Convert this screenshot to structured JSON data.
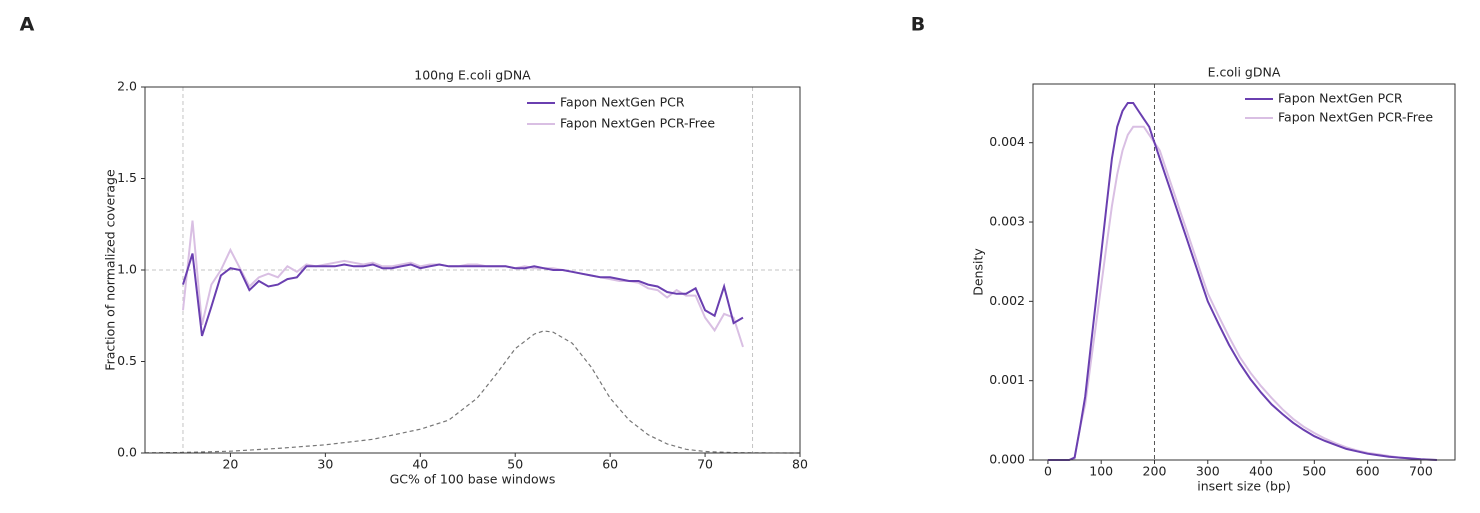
{
  "chart_data": [
    {
      "type": "line",
      "panel_label": "A",
      "title": "100ng E.coli gDNA",
      "x_label": "GC% of 100 base windows",
      "y_label": "Fraction of normalized coverage",
      "x": [
        15,
        16,
        17,
        18,
        19,
        20,
        21,
        22,
        23,
        24,
        25,
        26,
        27,
        28,
        29,
        30,
        31,
        32,
        33,
        34,
        35,
        36,
        37,
        38,
        39,
        40,
        41,
        42,
        43,
        44,
        45,
        46,
        47,
        48,
        49,
        50,
        51,
        52,
        53,
        54,
        55,
        56,
        57,
        58,
        59,
        60,
        61,
        62,
        63,
        64,
        65,
        66,
        67,
        68,
        69,
        70,
        71,
        72,
        73,
        74
      ],
      "series": [
        {
          "name": "Fapon NextGen PCR",
          "color": "#6a3fb0",
          "values": [
            0.92,
            1.09,
            0.64,
            0.8,
            0.97,
            1.01,
            1.0,
            0.89,
            0.94,
            0.91,
            0.92,
            0.95,
            0.96,
            1.02,
            1.02,
            1.02,
            1.02,
            1.03,
            1.02,
            1.02,
            1.03,
            1.01,
            1.01,
            1.02,
            1.03,
            1.01,
            1.02,
            1.03,
            1.02,
            1.02,
            1.02,
            1.02,
            1.02,
            1.02,
            1.02,
            1.01,
            1.01,
            1.02,
            1.01,
            1.0,
            1.0,
            0.99,
            0.98,
            0.97,
            0.96,
            0.96,
            0.95,
            0.94,
            0.94,
            0.92,
            0.91,
            0.88,
            0.87,
            0.87,
            0.9,
            0.78,
            0.75,
            0.91,
            0.71,
            0.74
          ]
        },
        {
          "name": "Fapon NextGen PCR-Free",
          "color": "#d9bfe3",
          "values": [
            0.78,
            1.27,
            0.7,
            0.92,
            1.0,
            1.11,
            1.01,
            0.91,
            0.96,
            0.98,
            0.96,
            1.02,
            0.99,
            1.03,
            1.02,
            1.03,
            1.04,
            1.05,
            1.04,
            1.03,
            1.04,
            1.02,
            1.02,
            1.03,
            1.04,
            1.02,
            1.03,
            1.03,
            1.02,
            1.02,
            1.03,
            1.03,
            1.02,
            1.02,
            1.02,
            1.01,
            1.02,
            1.01,
            1.01,
            1.01,
            1.0,
            0.99,
            0.98,
            0.97,
            0.96,
            0.95,
            0.94,
            0.94,
            0.93,
            0.9,
            0.89,
            0.85,
            0.89,
            0.86,
            0.86,
            0.74,
            0.67,
            0.76,
            0.74,
            0.58
          ]
        }
      ],
      "reference_curve": {
        "color": "#777777",
        "x": [
          11,
          15,
          20,
          25,
          30,
          35,
          40,
          43,
          46,
          48,
          50,
          52,
          53,
          54,
          56,
          58,
          60,
          62,
          64,
          66,
          68,
          70,
          73,
          76,
          80
        ],
        "values": [
          0.001,
          0.003,
          0.01,
          0.025,
          0.045,
          0.075,
          0.13,
          0.18,
          0.3,
          0.43,
          0.57,
          0.65,
          0.667,
          0.66,
          0.6,
          0.47,
          0.3,
          0.18,
          0.1,
          0.05,
          0.02,
          0.008,
          0.002,
          0.0005,
          0
        ]
      },
      "vlines": [
        15,
        75
      ],
      "hlines": [
        1
      ],
      "ref_color": "#c4c4c4",
      "xlim": [
        11,
        80
      ],
      "ylim": [
        0,
        2
      ],
      "xticks": [
        20,
        30,
        40,
        50,
        60,
        70,
        80
      ],
      "yticks": [
        {
          "value": 0,
          "label": "0.0"
        },
        0.5,
        {
          "value": 1,
          "label": "1.0"
        },
        1.5,
        {
          "value": 2,
          "label": "2.0"
        }
      ]
    },
    {
      "type": "line",
      "panel_label": "B",
      "title": "E.coli gDNA",
      "x_label": "insert size (bp)",
      "y_label": "Density",
      "x": [
        0,
        10,
        20,
        30,
        40,
        50,
        60,
        70,
        80,
        90,
        100,
        110,
        120,
        130,
        140,
        150,
        160,
        170,
        180,
        190,
        200,
        210,
        220,
        230,
        240,
        250,
        260,
        270,
        280,
        290,
        300,
        320,
        340,
        360,
        380,
        400,
        420,
        440,
        460,
        480,
        500,
        520,
        540,
        560,
        580,
        600,
        620,
        640,
        660,
        680,
        700,
        730
      ],
      "series": [
        {
          "name": "Fapon NextGen PCR",
          "color": "#6a3fb0",
          "values": [
            0,
            0,
            0,
            0,
            0,
            3e-05,
            0.0004,
            0.0008,
            0.0014,
            0.002,
            0.0026,
            0.0032,
            0.0038,
            0.0042,
            0.0044,
            0.0045,
            0.0045,
            0.0044,
            0.0043,
            0.0042,
            0.004,
            0.0038,
            0.0036,
            0.0034,
            0.0032,
            0.003,
            0.0028,
            0.0026,
            0.0024,
            0.0022,
            0.002,
            0.00172,
            0.00145,
            0.00122,
            0.00102,
            0.00085,
            0.0007,
            0.00058,
            0.00047,
            0.00038,
            0.0003,
            0.00024,
            0.00019,
            0.00014,
            0.00011,
            8e-05,
            6e-05,
            4e-05,
            3e-05,
            2e-05,
            1e-05,
            0
          ]
        },
        {
          "name": "Fapon NextGen PCR-Free",
          "color": "#d9bfe3",
          "values": [
            0,
            0,
            0,
            0,
            0,
            2e-05,
            0.0004,
            0.0007,
            0.0012,
            0.0017,
            0.0022,
            0.0027,
            0.0032,
            0.0036,
            0.0039,
            0.0041,
            0.0042,
            0.0042,
            0.0042,
            0.0041,
            0.004,
            0.0039,
            0.0037,
            0.0035,
            0.0033,
            0.0031,
            0.0029,
            0.0027,
            0.0025,
            0.0023,
            0.0021,
            0.00182,
            0.00155,
            0.0013,
            0.0011,
            0.00093,
            0.00078,
            0.00064,
            0.00052,
            0.00042,
            0.00034,
            0.00027,
            0.00021,
            0.00016,
            0.00012,
            9e-05,
            7e-05,
            5e-05,
            3e-05,
            2e-05,
            1e-05,
            0
          ]
        }
      ],
      "vlines": [
        200
      ],
      "ref_color": "#555555",
      "xlim": [
        -28,
        764
      ],
      "ylim": [
        0,
        0.00474
      ],
      "xticks": [
        0,
        100,
        200,
        300,
        400,
        500,
        600,
        700
      ],
      "yticks": [
        {
          "value": 0,
          "label": "0.000"
        },
        0.001,
        0.002,
        0.003,
        0.004
      ]
    }
  ]
}
